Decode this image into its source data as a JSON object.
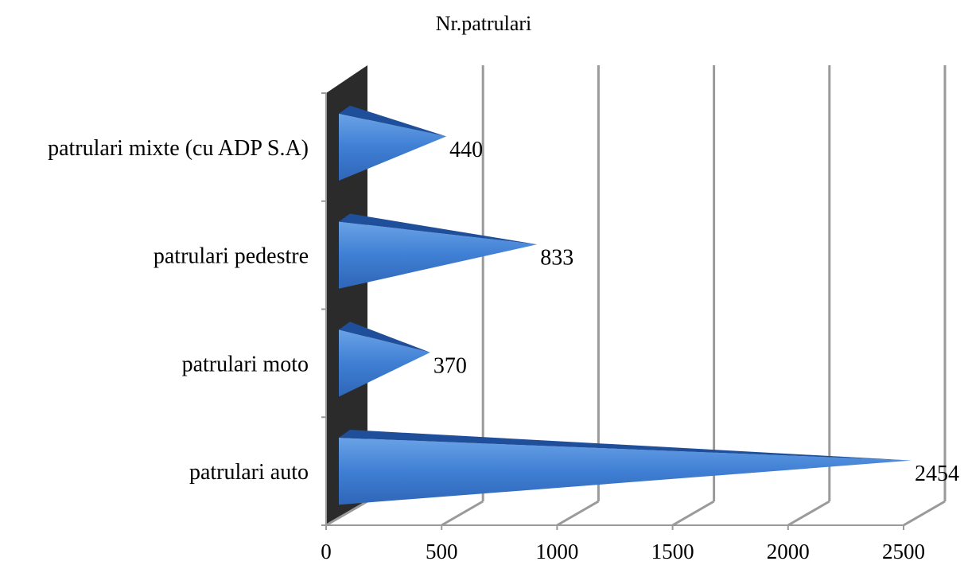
{
  "chart_data": {
    "type": "bar",
    "orientation": "horizontal",
    "style": "3d-cone",
    "title": "Nr.patrulari",
    "categories": [
      "patrulari auto",
      "patrulari moto",
      "patrulari pedestre",
      "patrulari mixte (cu ADP S.A)"
    ],
    "values": [
      2454,
      370,
      833,
      440
    ],
    "xlim": [
      0,
      2500
    ],
    "x_ticks": [
      0,
      500,
      1000,
      1500,
      2000,
      2500
    ],
    "grid": true,
    "legend": "none",
    "colors": {
      "bar": "#3f7fd4",
      "bar_dark": "#1f4f9a",
      "bar_light": "#6aa2e6",
      "wall": "#2b2b2b",
      "grid": "#9a9a9a"
    }
  }
}
